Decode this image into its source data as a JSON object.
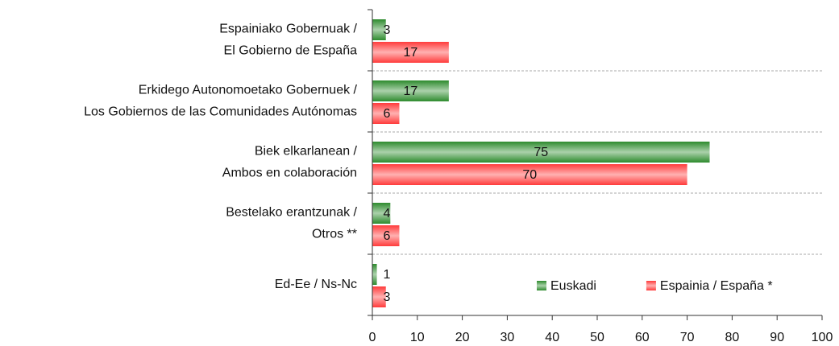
{
  "chart_data": {
    "type": "bar",
    "orientation": "horizontal",
    "categories": [
      [
        "Espainiako Gobernuak /",
        "El Gobierno de España"
      ],
      [
        "Erkidego Autonomoetako Gobernuek /",
        "Los Gobiernos de las Comunidades Autónomas"
      ],
      [
        "Biek elkarlanean /",
        "Ambos en colaboración"
      ],
      [
        "Bestelako erantzunak /",
        "Otros **"
      ],
      [
        "Ed-Ee / Ns-Nc"
      ]
    ],
    "series": [
      {
        "name": "Euskadi",
        "color": "#2e8b2e",
        "values": [
          3,
          17,
          75,
          4,
          1
        ]
      },
      {
        "name": "Espainia / España *",
        "color": "#ff3b3b",
        "values": [
          17,
          6,
          70,
          6,
          3
        ]
      }
    ],
    "xlim": [
      0,
      100
    ],
    "xticks": [
      0,
      10,
      20,
      30,
      40,
      50,
      60,
      70,
      80,
      90,
      100
    ],
    "legend": "lower right"
  }
}
